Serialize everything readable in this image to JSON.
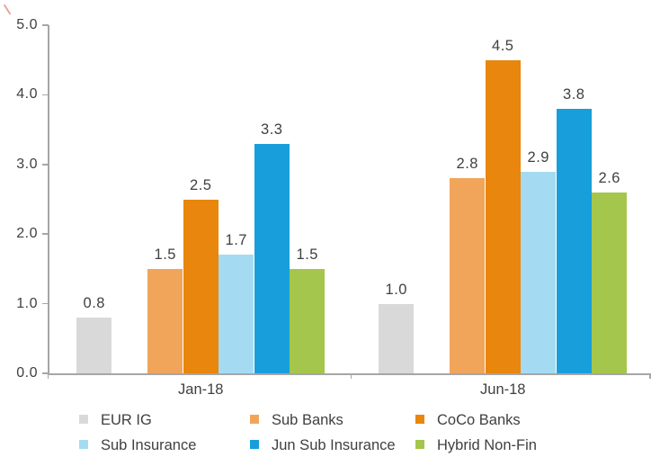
{
  "chart_data": {
    "type": "bar",
    "title": "",
    "categories": [
      "Jan-18",
      "Jun-18"
    ],
    "series": [
      {
        "name": "EUR IG",
        "color": "#d9d9d9",
        "values": [
          0.8,
          1.0
        ],
        "labels": [
          "0.8",
          "1.0"
        ]
      },
      {
        "name": "Sub Banks",
        "color": "#f0a55a",
        "values": [
          1.5,
          2.8
        ],
        "labels": [
          "1.5",
          "2.8"
        ]
      },
      {
        "name": "CoCo Banks",
        "color": "#e8860d",
        "values": [
          2.5,
          4.5
        ],
        "labels": [
          "2.5",
          "4.5"
        ]
      },
      {
        "name": "Sub Insurance",
        "color": "#a5dbf2",
        "values": [
          1.7,
          2.9
        ],
        "labels": [
          "1.7",
          "2.9"
        ]
      },
      {
        "name": "Jun Sub Insurance",
        "color": "#189fdb",
        "values": [
          3.3,
          3.8
        ],
        "labels": [
          "3.3",
          "3.8"
        ]
      },
      {
        "name": "Hybrid Non-Fin",
        "color": "#a4c64c",
        "values": [
          1.5,
          2.6
        ],
        "labels": [
          "1.5",
          "2.6"
        ]
      }
    ],
    "y_axis": {
      "min": 0,
      "max": 5,
      "step": 1,
      "tick_labels": [
        "0.0",
        "1.0",
        "2.0",
        "3.0",
        "4.0",
        "5.0"
      ]
    },
    "xlabel": "",
    "ylabel": "",
    "grid": false,
    "legend_position": "bottom",
    "legend_columns": 3
  },
  "colors": {
    "axis": "#a6a6a6",
    "text": "#404040",
    "background": "#ffffff"
  }
}
